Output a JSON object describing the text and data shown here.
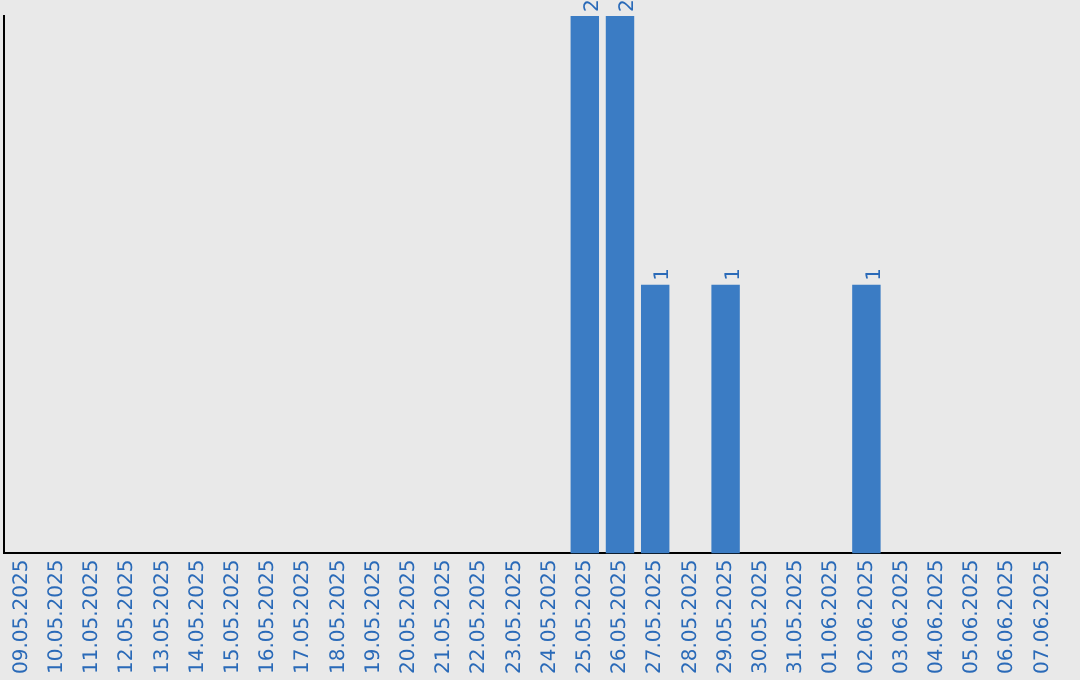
{
  "chart_data": {
    "type": "bar",
    "categories": [
      "09.05.2025",
      "10.05.2025",
      "11.05.2025",
      "12.05.2025",
      "13.05.2025",
      "14.05.2025",
      "15.05.2025",
      "16.05.2025",
      "17.05.2025",
      "18.05.2025",
      "19.05.2025",
      "20.05.2025",
      "21.05.2025",
      "22.05.2025",
      "23.05.2025",
      "24.05.2025",
      "25.05.2025",
      "26.05.2025",
      "27.05.2025",
      "28.05.2025",
      "29.05.2025",
      "30.05.2025",
      "31.05.2025",
      "01.06.2025",
      "02.06.2025",
      "03.06.2025",
      "04.06.2025",
      "05.06.2025",
      "06.06.2025",
      "07.06.2025"
    ],
    "values": [
      null,
      null,
      null,
      null,
      null,
      null,
      null,
      null,
      null,
      null,
      null,
      null,
      null,
      null,
      null,
      null,
      2,
      2,
      1,
      null,
      1,
      null,
      null,
      null,
      1,
      null,
      null,
      null,
      null,
      null
    ],
    "value_labels": [
      null,
      null,
      null,
      null,
      null,
      null,
      null,
      null,
      null,
      null,
      null,
      null,
      null,
      null,
      null,
      null,
      "2",
      "2",
      "1",
      null,
      "1",
      null,
      null,
      null,
      "1",
      null,
      null,
      null,
      null,
      null
    ],
    "color": "#3b7cc4",
    "grid": false,
    "legend": false,
    "tick_labels": "x"
  }
}
